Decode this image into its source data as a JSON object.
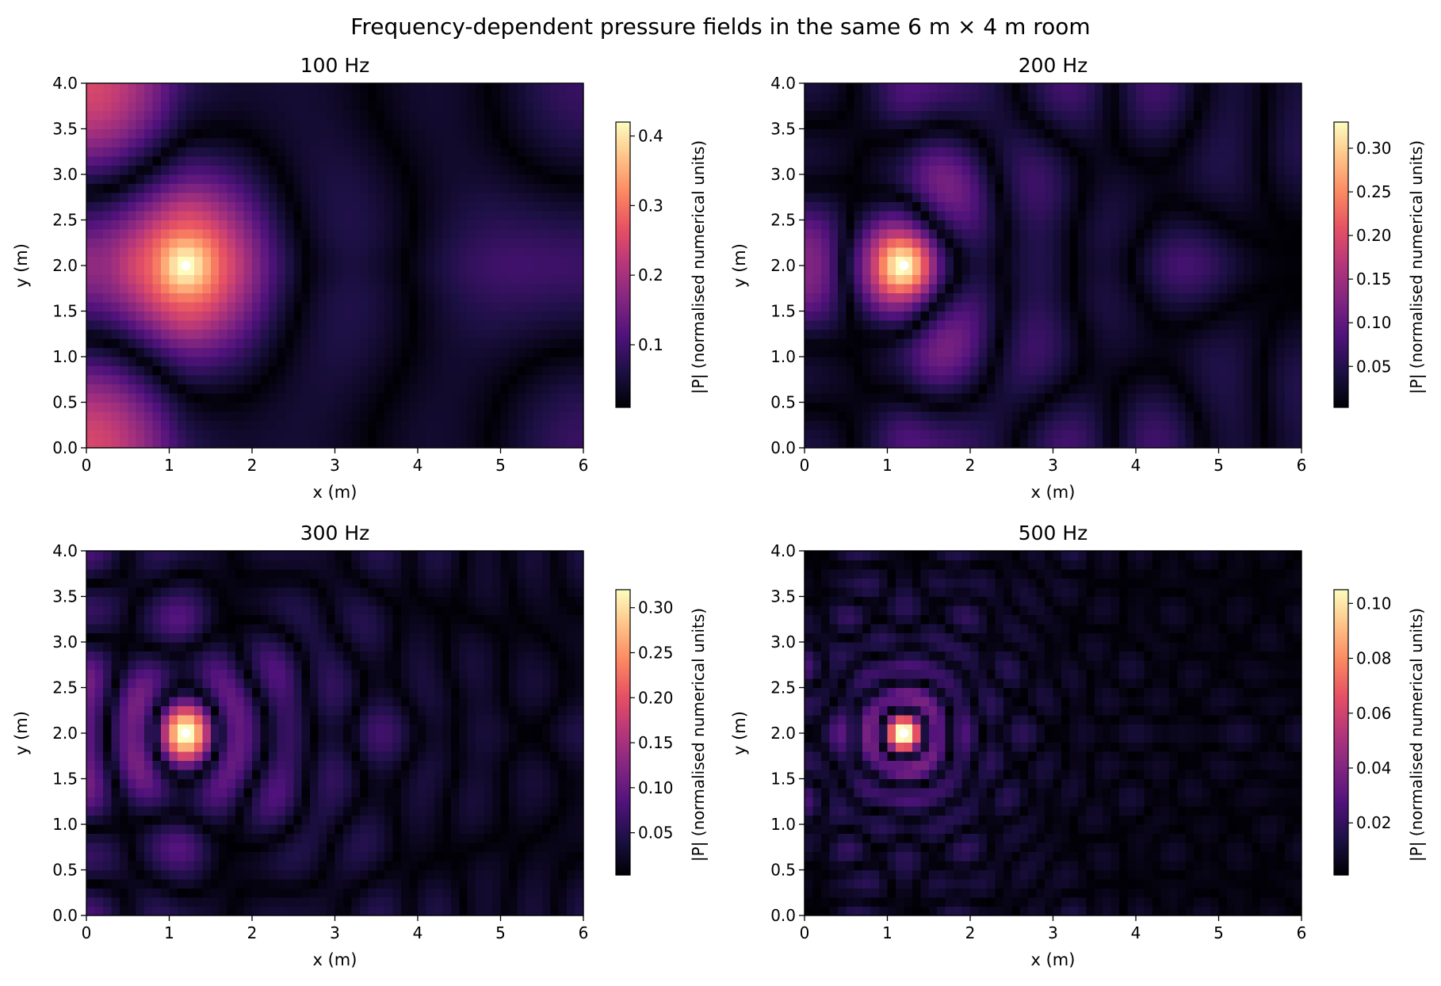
{
  "figure": {
    "title": "Frequency-dependent pressure fields in the same 6 m × 4 m room"
  },
  "chart_data": [
    {
      "type": "heatmap",
      "title": "100 Hz",
      "freq_hz": 100,
      "xlabel": "x (m)",
      "ylabel": "y (m)",
      "xlim": [
        0,
        6
      ],
      "ylim": [
        0,
        4
      ],
      "xticks": [
        "0",
        "1",
        "2",
        "3",
        "4",
        "5",
        "6"
      ],
      "yticks": [
        "0.0",
        "0.5",
        "1.0",
        "1.5",
        "2.0",
        "2.5",
        "3.0",
        "3.5",
        "4.0"
      ],
      "source": {
        "x": 1.2,
        "y": 2.0,
        "color": "#ffffff"
      },
      "colorbar": {
        "label": "|P| (normalised numerical units)",
        "range": [
          0.01,
          0.42
        ],
        "ticks": [
          "0.1",
          "0.2",
          "0.3",
          "0.4"
        ],
        "tick_values": [
          0.1,
          0.2,
          0.3,
          0.4
        ],
        "colormap": "magma"
      }
    },
    {
      "type": "heatmap",
      "title": "200 Hz",
      "freq_hz": 200,
      "xlabel": "x (m)",
      "ylabel": "y (m)",
      "xlim": [
        0,
        6
      ],
      "ylim": [
        0,
        4
      ],
      "xticks": [
        "0",
        "1",
        "2",
        "3",
        "4",
        "5",
        "6"
      ],
      "yticks": [
        "0.0",
        "0.5",
        "1.0",
        "1.5",
        "2.0",
        "2.5",
        "3.0",
        "3.5",
        "4.0"
      ],
      "source": {
        "x": 1.2,
        "y": 2.0,
        "color": "#ffffff"
      },
      "colorbar": {
        "label": "|P| (normalised numerical units)",
        "range": [
          0.003,
          0.33
        ],
        "ticks": [
          "0.05",
          "0.10",
          "0.15",
          "0.20",
          "0.25",
          "0.30"
        ],
        "tick_values": [
          0.05,
          0.1,
          0.15,
          0.2,
          0.25,
          0.3
        ],
        "colormap": "magma"
      }
    },
    {
      "type": "heatmap",
      "title": "300 Hz",
      "freq_hz": 300,
      "xlabel": "x (m)",
      "ylabel": "y (m)",
      "xlim": [
        0,
        6
      ],
      "ylim": [
        0,
        4
      ],
      "xticks": [
        "0",
        "1",
        "2",
        "3",
        "4",
        "5",
        "6"
      ],
      "yticks": [
        "0.0",
        "0.5",
        "1.0",
        "1.5",
        "2.0",
        "2.5",
        "3.0",
        "3.5",
        "4.0"
      ],
      "source": {
        "x": 1.2,
        "y": 2.0,
        "color": "#ffffff"
      },
      "colorbar": {
        "label": "|P| (normalised numerical units)",
        "range": [
          0.003,
          0.32
        ],
        "ticks": [
          "0.05",
          "0.10",
          "0.15",
          "0.20",
          "0.25",
          "0.30"
        ],
        "tick_values": [
          0.05,
          0.1,
          0.15,
          0.2,
          0.25,
          0.3
        ],
        "colormap": "magma"
      }
    },
    {
      "type": "heatmap",
      "title": "500 Hz",
      "freq_hz": 500,
      "xlabel": "x (m)",
      "ylabel": "y (m)",
      "xlim": [
        0,
        6
      ],
      "ylim": [
        0,
        4
      ],
      "xticks": [
        "0",
        "1",
        "2",
        "3",
        "4",
        "5",
        "6"
      ],
      "yticks": [
        "0.0",
        "0.5",
        "1.0",
        "1.5",
        "2.0",
        "2.5",
        "3.0",
        "3.5",
        "4.0"
      ],
      "source": {
        "x": 1.2,
        "y": 2.0,
        "color": "#ffffff"
      },
      "colorbar": {
        "label": "|P| (normalised numerical units)",
        "range": [
          0.001,
          0.105
        ],
        "ticks": [
          "0.02",
          "0.04",
          "0.06",
          "0.08",
          "0.10"
        ],
        "tick_values": [
          0.02,
          0.04,
          0.06,
          0.08,
          0.1
        ],
        "colormap": "magma"
      }
    }
  ]
}
